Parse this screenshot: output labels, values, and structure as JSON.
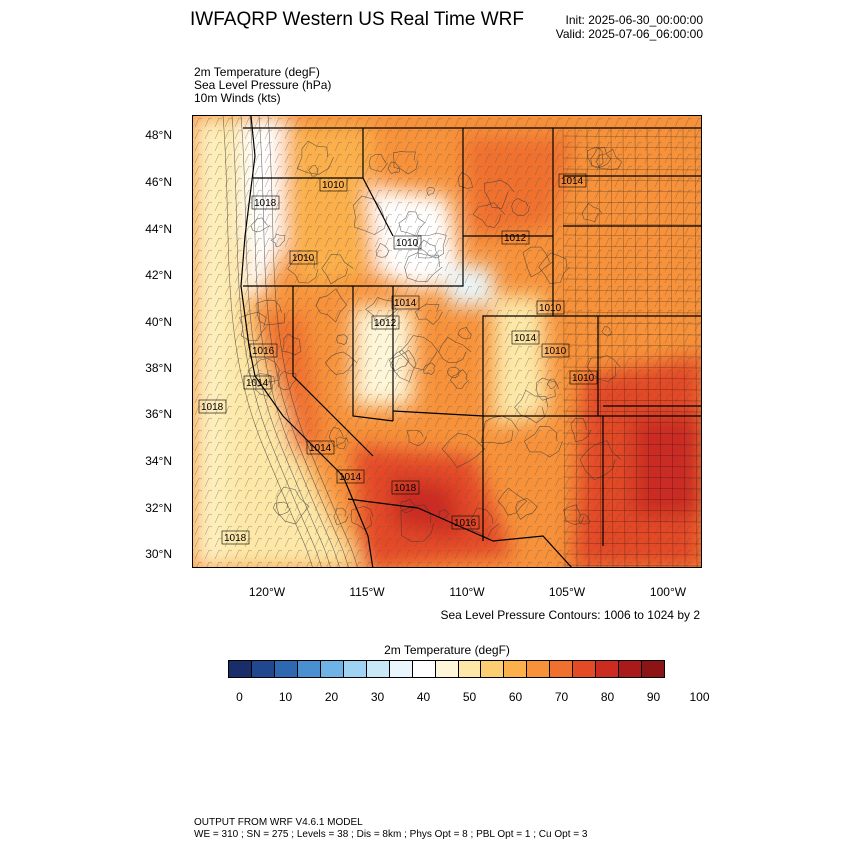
{
  "header": {
    "title": "IWFAQRP Western US Real Time WRF",
    "init": "Init: 2025-06-30_00:00:00",
    "valid": "Valid: 2025-07-06_06:00:00"
  },
  "fields": [
    "2m Temperature   (degF)",
    "Sea Level Pressure   (hPa)",
    "10m Winds   (kts)"
  ],
  "map": {
    "lat_labels": [
      "48°N",
      "46°N",
      "44°N",
      "42°N",
      "40°N",
      "38°N",
      "36°N",
      "34°N",
      "32°N",
      "30°N"
    ],
    "lon_labels": [
      "120°W",
      "115°W",
      "110°W",
      "105°W",
      "100°W"
    ],
    "contour_labels": [
      "1010",
      "1014",
      "1018",
      "1010",
      "1012",
      "1014",
      "1016",
      "1014",
      "1014",
      "1018",
      "1014",
      "1014",
      "1018",
      "1016",
      "1010",
      "1010",
      "1012",
      "1010",
      "1018",
      "1010"
    ],
    "contour_note": "Sea Level Pressure Contours: 1006 to 1024 by 2"
  },
  "colorbar": {
    "title": "2m Temperature  (degF)",
    "labels": [
      "0",
      "10",
      "20",
      "30",
      "40",
      "50",
      "60",
      "70",
      "80",
      "90",
      "100"
    ],
    "colors": [
      "#1a2d6b",
      "#21478f",
      "#2d68b0",
      "#4a8fd0",
      "#6fb2e6",
      "#9fd3f4",
      "#c8e8f8",
      "#eaf6fb",
      "#ffffff",
      "#fef6d8",
      "#fde8a8",
      "#fccd72",
      "#fbb04b",
      "#f7923a",
      "#f0702d",
      "#e44a26",
      "#cc2b22",
      "#ab1a1a",
      "#8c1414"
    ]
  },
  "footer": {
    "line1": "OUTPUT FROM WRF V4.6.1 MODEL",
    "line2": "WE = 310 ; SN = 275 ; Levels = 38 ; Dis = 8km ; Phys Opt = 8 ; PBL Opt = 1 ; Cu Opt = 3"
  }
}
